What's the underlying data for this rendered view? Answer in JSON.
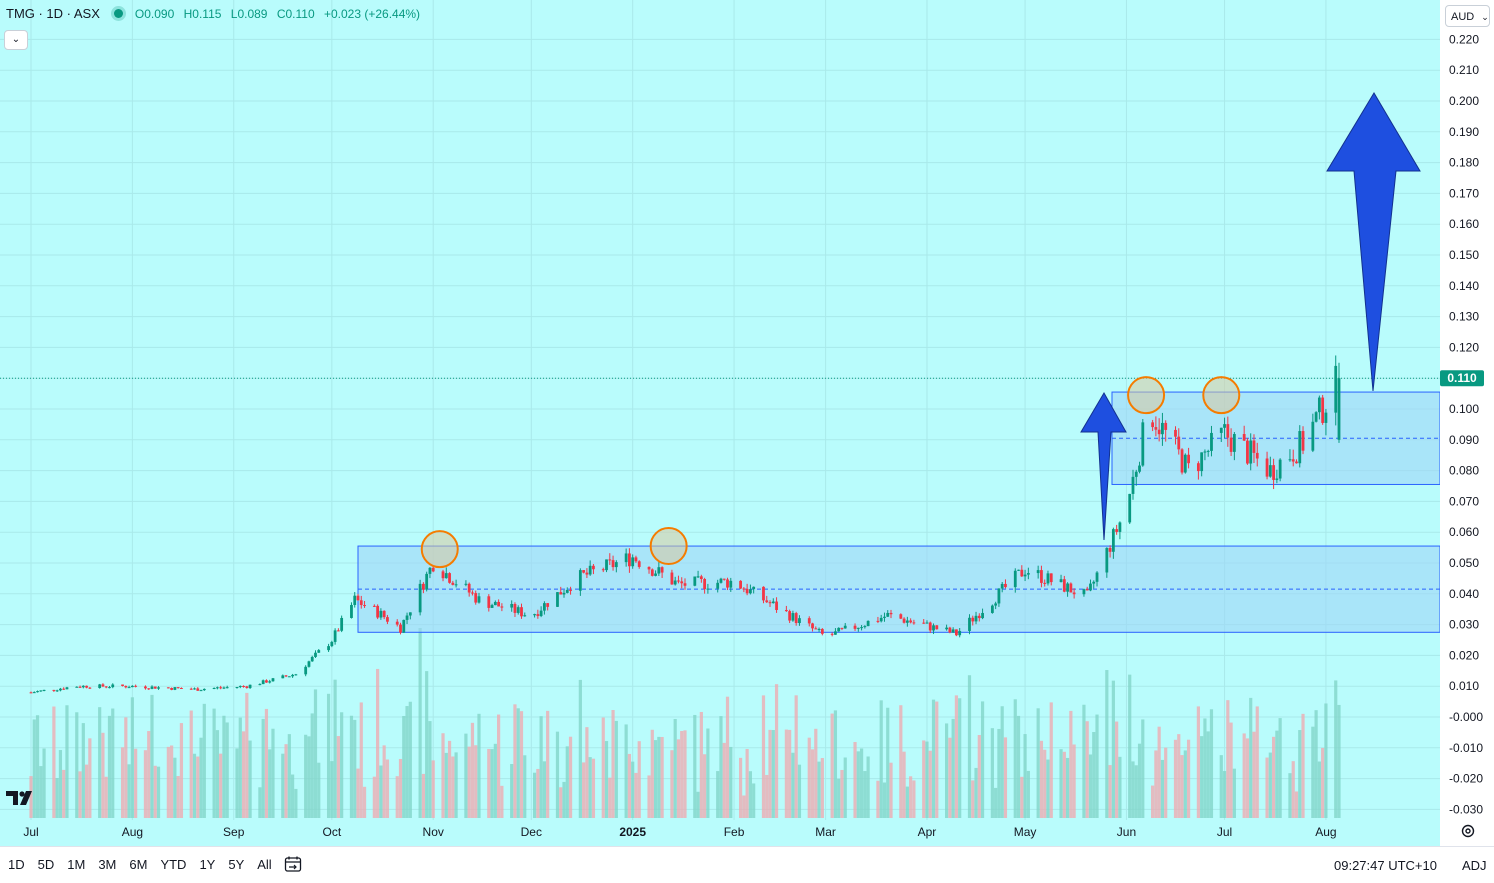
{
  "header": {
    "symbol": "TMG · 1D · ASX",
    "open": "O0.090",
    "high": "H0.115",
    "low": "L0.089",
    "close": "C0.110",
    "change": "+0.023 (+26.44%)"
  },
  "currency": {
    "label": "AUD",
    "icon": "chevron-down-icon"
  },
  "bottom_bar": {
    "ranges": [
      "1D",
      "5D",
      "1M",
      "3M",
      "6M",
      "YTD",
      "1Y",
      "5Y",
      "All"
    ],
    "calendar_icon": "calendar-goto-icon",
    "time": "09:27:47 UTC+10",
    "adj": "ADJ"
  },
  "colors": {
    "background": "#b9fcfc",
    "up": "#089981",
    "down": "#f23645",
    "zone_fill": "#9ed6f7",
    "zone_border": "#2962ff",
    "arrow": "#1e4fe0",
    "circle": "#f57c00"
  },
  "chart_data": {
    "type": "candlestick",
    "symbol": "TMG",
    "interval": "1D",
    "exchange": "ASX",
    "currency": "AUD",
    "last_price": "0.110",
    "y_ticks": [
      "0.220",
      "0.210",
      "0.200",
      "0.190",
      "0.180",
      "0.170",
      "0.160",
      "0.150",
      "0.140",
      "0.130",
      "0.120",
      "0.110",
      "0.100",
      "0.090",
      "0.080",
      "0.070",
      "0.060",
      "0.050",
      "0.040",
      "0.030",
      "0.020",
      "0.010",
      "-0.000",
      "-0.010",
      "-0.020",
      "-0.030"
    ],
    "x_ticks": [
      "Jul",
      "Aug",
      "Sep",
      "Oct",
      "Nov",
      "Dec",
      "2025",
      "Feb",
      "Mar",
      "Apr",
      "May",
      "Jun",
      "Jul",
      "Aug"
    ],
    "ylim": [
      -0.033,
      0.224
    ],
    "close_series": [
      {
        "date": "2024-07-01",
        "close": 0.008
      },
      {
        "date": "2024-07-15",
        "close": 0.01
      },
      {
        "date": "2024-08-01",
        "close": 0.01
      },
      {
        "date": "2024-08-20",
        "close": 0.009
      },
      {
        "date": "2024-09-05",
        "close": 0.01
      },
      {
        "date": "2024-09-20",
        "close": 0.014
      },
      {
        "date": "2024-10-01",
        "close": 0.025
      },
      {
        "date": "2024-10-08",
        "close": 0.038
      },
      {
        "date": "2024-10-15",
        "close": 0.034
      },
      {
        "date": "2024-10-22",
        "close": 0.029
      },
      {
        "date": "2024-11-01",
        "close": 0.05
      },
      {
        "date": "2024-11-15",
        "close": 0.038
      },
      {
        "date": "2024-12-01",
        "close": 0.033
      },
      {
        "date": "2024-12-15",
        "close": 0.045
      },
      {
        "date": "2025-01-01",
        "close": 0.052
      },
      {
        "date": "2025-01-15",
        "close": 0.043
      },
      {
        "date": "2025-02-01",
        "close": 0.044
      },
      {
        "date": "2025-02-15",
        "close": 0.035
      },
      {
        "date": "2025-03-01",
        "close": 0.026
      },
      {
        "date": "2025-03-20",
        "close": 0.033
      },
      {
        "date": "2025-04-10",
        "close": 0.027
      },
      {
        "date": "2025-05-01",
        "close": 0.048
      },
      {
        "date": "2025-05-20",
        "close": 0.039
      },
      {
        "date": "2025-06-01",
        "close": 0.068
      },
      {
        "date": "2025-06-08",
        "close": 0.1
      },
      {
        "date": "2025-06-20",
        "close": 0.08
      },
      {
        "date": "2025-07-01",
        "close": 0.092
      },
      {
        "date": "2025-07-15",
        "close": 0.08
      },
      {
        "date": "2025-07-25",
        "close": 0.089
      },
      {
        "date": "2025-08-05",
        "close": 0.11
      }
    ],
    "annotations": {
      "lower_range": {
        "top": 0.0555,
        "bottom": 0.0275,
        "mid": 0.0415
      },
      "upper_range": {
        "top": 0.1055,
        "bottom": 0.0755,
        "mid": 0.0905
      },
      "resistance_touches": [
        0.0545,
        0.0555,
        0.1045,
        0.1045
      ],
      "arrows": [
        "breakout arrow into upper range",
        "target arrow toward 0.200"
      ]
    }
  }
}
